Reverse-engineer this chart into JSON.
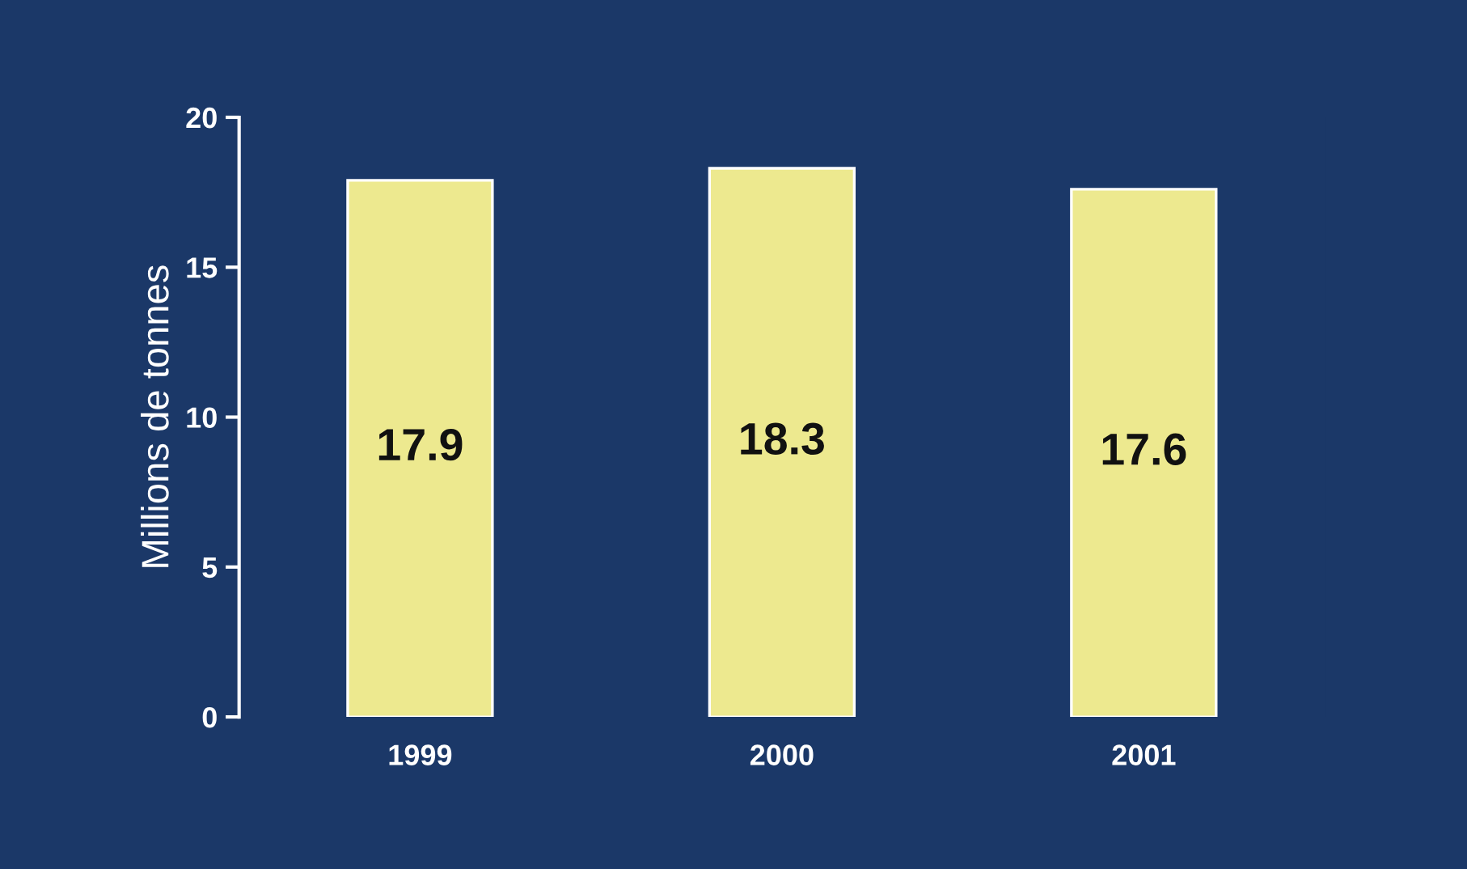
{
  "chart_data": {
    "type": "bar",
    "ylabel": "Millions de tonnes",
    "categories": [
      "1999",
      "2000",
      "2001"
    ],
    "values": [
      17.9,
      18.3,
      17.6
    ],
    "color": "#ede98f",
    "ylim": [
      0,
      20
    ],
    "yticks": [
      0,
      5,
      10,
      15,
      20
    ],
    "grid": false,
    "data_labels": true
  }
}
